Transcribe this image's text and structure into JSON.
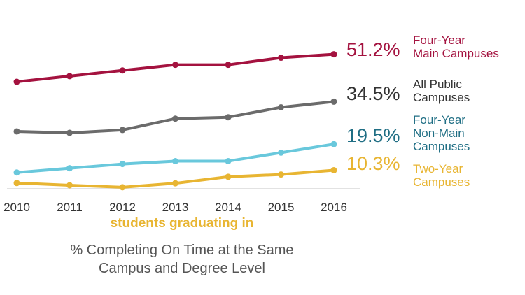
{
  "chart_data": {
    "type": "line",
    "x": [
      "2010",
      "2011",
      "2012",
      "2013",
      "2014",
      "2015",
      "2016"
    ],
    "xlabel": "students graduating in",
    "caption": [
      "% Completing On Time at the Same",
      "Campus and Degree Level"
    ],
    "ylim": [
      5,
      60
    ],
    "grid": false,
    "series": [
      {
        "key": "main",
        "name": [
          "Four-Year",
          "Main Campuses"
        ],
        "end_label": "51.2%",
        "color": "#a4123f",
        "label_color": "#a4123f",
        "values": [
          41.5,
          43.5,
          45.5,
          47.5,
          47.5,
          50.0,
          51.2
        ]
      },
      {
        "key": "all",
        "name": [
          "All Public",
          "Campuses"
        ],
        "end_label": "34.5%",
        "color": "#6b6b6b",
        "label_color": "#333333",
        "values": [
          24.0,
          23.5,
          24.5,
          28.5,
          29.0,
          32.5,
          34.5
        ]
      },
      {
        "key": "nonmain",
        "name": [
          "Four-Year",
          "Non-Main",
          "Campuses"
        ],
        "end_label": "19.5%",
        "color": "#69c8dc",
        "label_color": "#1f6e84",
        "values": [
          9.5,
          11.0,
          12.5,
          13.5,
          13.5,
          16.5,
          19.5
        ]
      },
      {
        "key": "twoyear",
        "name": [
          "Two-Year",
          "Campuses"
        ],
        "end_label": "10.3%",
        "color": "#e8b532",
        "label_color": "#e8b532",
        "values": [
          5.8,
          5.0,
          4.3,
          5.7,
          8.0,
          8.8,
          10.3
        ]
      }
    ]
  }
}
